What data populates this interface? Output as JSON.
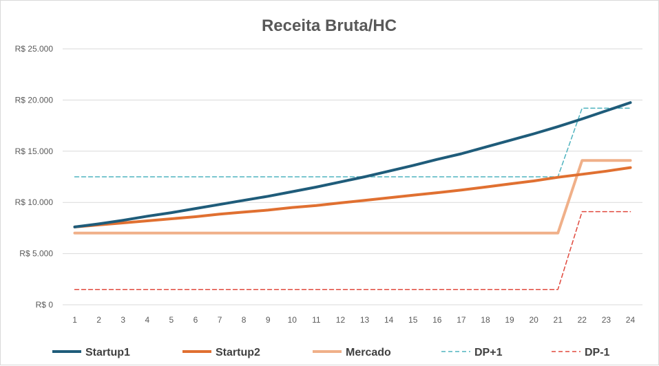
{
  "chart_data": {
    "type": "line",
    "title": "Receita Bruta/HC",
    "xlabel": "",
    "ylabel": "",
    "categories": [
      "1",
      "2",
      "3",
      "4",
      "5",
      "6",
      "7",
      "8",
      "9",
      "10",
      "11",
      "12",
      "13",
      "14",
      "15",
      "16",
      "17",
      "18",
      "19",
      "20",
      "21",
      "22",
      "23",
      "24"
    ],
    "ylim": [
      0,
      25000
    ],
    "yticks": [
      0,
      5000,
      10000,
      15000,
      20000,
      25000
    ],
    "ytick_labels": [
      "R$ 0",
      "R$ 5.000",
      "R$ 10.000",
      "R$ 15.000",
      "R$ 20.000",
      "R$ 25.000"
    ],
    "grid": true,
    "legend_position": "bottom",
    "series": [
      {
        "name": "Startup1",
        "color": "#1f5c7a",
        "style": "solid",
        "values": [
          7600,
          7900,
          8250,
          8650,
          9000,
          9400,
          9800,
          10200,
          10600,
          11050,
          11500,
          12000,
          12500,
          13050,
          13600,
          14200,
          14750,
          15400,
          16050,
          16700,
          17400,
          18150,
          18950,
          19750
        ]
      },
      {
        "name": "Startup2",
        "color": "#e07031",
        "style": "solid",
        "values": [
          7600,
          7800,
          8000,
          8200,
          8400,
          8600,
          8850,
          9050,
          9250,
          9500,
          9700,
          9950,
          10200,
          10450,
          10700,
          10950,
          11200,
          11500,
          11800,
          12100,
          12450,
          12750,
          13050,
          13400
        ]
      },
      {
        "name": "Mercado",
        "color": "#f0b089",
        "style": "solid",
        "values": [
          7000,
          7000,
          7000,
          7000,
          7000,
          7000,
          7000,
          7000,
          7000,
          7000,
          7000,
          7000,
          7000,
          7000,
          7000,
          7000,
          7000,
          7000,
          7000,
          7000,
          7000,
          14100,
          14100,
          14100
        ]
      },
      {
        "name": "DP+1",
        "color": "#4fb3bf",
        "style": "dashed",
        "values": [
          12500,
          12500,
          12500,
          12500,
          12500,
          12500,
          12500,
          12500,
          12500,
          12500,
          12500,
          12500,
          12500,
          12500,
          12500,
          12500,
          12500,
          12500,
          12500,
          12500,
          12500,
          19200,
          19200,
          19200
        ]
      },
      {
        "name": "DP-1",
        "color": "#e0483c",
        "style": "dashed",
        "values": [
          1500,
          1500,
          1500,
          1500,
          1500,
          1500,
          1500,
          1500,
          1500,
          1500,
          1500,
          1500,
          1500,
          1500,
          1500,
          1500,
          1500,
          1500,
          1500,
          1500,
          1500,
          9100,
          9100,
          9100
        ]
      }
    ]
  }
}
